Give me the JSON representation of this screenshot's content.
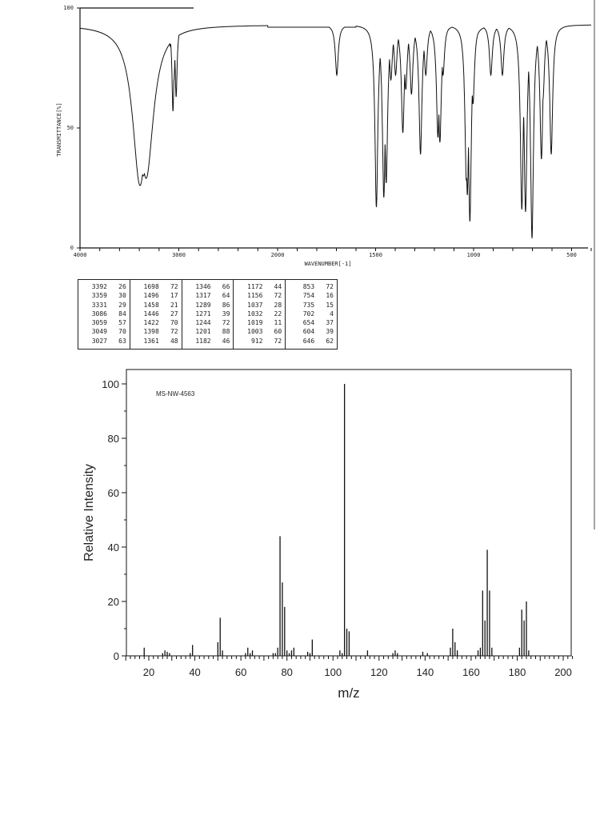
{
  "chart_data": [
    {
      "type": "line",
      "xlabel": "WAVENUMBER[-1]",
      "ylabel": "TRANSMITTANCE[%]",
      "xlim": [
        4000,
        400
      ],
      "ylim": [
        0,
        100
      ],
      "x_scale_note": "x axis scale doubles below 2000",
      "xticks": [
        "4000",
        "3000",
        "2000",
        "1500",
        "1000",
        "500"
      ],
      "yticks": [
        "0",
        "50",
        "100"
      ],
      "grid": false,
      "peaks": [
        [
          3392,
          26
        ],
        [
          3359,
          30
        ],
        [
          3331,
          29
        ],
        [
          3086,
          84
        ],
        [
          3059,
          57
        ],
        [
          3049,
          70
        ],
        [
          3027,
          63
        ],
        [
          1698,
          72
        ],
        [
          1496,
          17
        ],
        [
          1458,
          21
        ],
        [
          1446,
          27
        ],
        [
          1422,
          70
        ],
        [
          1398,
          72
        ],
        [
          1361,
          48
        ],
        [
          1346,
          66
        ],
        [
          1317,
          64
        ],
        [
          1289,
          86
        ],
        [
          1271,
          39
        ],
        [
          1244,
          72
        ],
        [
          1201,
          88
        ],
        [
          1182,
          46
        ],
        [
          1172,
          44
        ],
        [
          1156,
          72
        ],
        [
          1037,
          28
        ],
        [
          1032,
          22
        ],
        [
          1019,
          11
        ],
        [
          1003,
          60
        ],
        [
          912,
          72
        ],
        [
          853,
          72
        ],
        [
          754,
          16
        ],
        [
          735,
          15
        ],
        [
          702,
          4
        ],
        [
          654,
          37
        ],
        [
          604,
          39
        ],
        [
          646,
          62
        ]
      ]
    },
    {
      "type": "bar",
      "title": "MS-NW-4563",
      "xlabel": "m/z",
      "ylabel": "Relative Intensity",
      "xlim": [
        10,
        204
      ],
      "ylim": [
        0,
        100
      ],
      "xticks": [
        "20",
        "40",
        "60",
        "80",
        "100",
        "120",
        "140",
        "160",
        "180",
        "200"
      ],
      "yticks": [
        "0",
        "20",
        "40",
        "60",
        "80",
        "100"
      ],
      "grid": false,
      "peaks": [
        [
          18,
          3
        ],
        [
          26,
          1
        ],
        [
          27,
          2
        ],
        [
          28,
          1.5
        ],
        [
          29,
          1
        ],
        [
          38,
          1
        ],
        [
          39,
          4
        ],
        [
          50,
          5
        ],
        [
          51,
          14
        ],
        [
          52,
          2
        ],
        [
          62,
          1
        ],
        [
          63,
          3
        ],
        [
          64,
          1
        ],
        [
          65,
          2
        ],
        [
          74,
          1
        ],
        [
          75,
          1
        ],
        [
          76,
          3
        ],
        [
          77,
          44
        ],
        [
          78,
          27
        ],
        [
          79,
          18
        ],
        [
          80,
          2
        ],
        [
          81,
          1
        ],
        [
          82,
          2
        ],
        [
          83,
          3
        ],
        [
          89,
          1.5
        ],
        [
          90,
          1
        ],
        [
          91,
          6
        ],
        [
          103,
          2
        ],
        [
          104,
          1
        ],
        [
          105,
          100
        ],
        [
          106,
          10
        ],
        [
          107,
          9
        ],
        [
          115,
          2
        ],
        [
          126,
          1
        ],
        [
          127,
          2
        ],
        [
          128,
          1
        ],
        [
          139,
          1.5
        ],
        [
          141,
          1
        ],
        [
          151,
          3
        ],
        [
          152,
          10
        ],
        [
          153,
          5
        ],
        [
          154,
          2
        ],
        [
          163,
          2
        ],
        [
          164,
          3
        ],
        [
          165,
          24
        ],
        [
          166,
          13
        ],
        [
          167,
          39
        ],
        [
          168,
          24
        ],
        [
          169,
          3
        ],
        [
          181,
          3
        ],
        [
          182,
          17
        ],
        [
          183,
          13
        ],
        [
          184,
          20
        ],
        [
          185,
          2
        ]
      ]
    }
  ],
  "peak_table": {
    "groups": [
      [
        [
          "3392",
          "26"
        ],
        [
          "3359",
          "30"
        ],
        [
          "3331",
          "29"
        ],
        [
          "3086",
          "84"
        ],
        [
          "3059",
          "57"
        ],
        [
          "3049",
          "70"
        ],
        [
          "3027",
          "63"
        ]
      ],
      [
        [
          "1698",
          "72"
        ],
        [
          "1496",
          "17"
        ],
        [
          "1458",
          "21"
        ],
        [
          "1446",
          "27"
        ],
        [
          "1422",
          "70"
        ],
        [
          "1398",
          "72"
        ],
        [
          "1361",
          "48"
        ]
      ],
      [
        [
          "1346",
          "66"
        ],
        [
          "1317",
          "64"
        ],
        [
          "1289",
          "86"
        ],
        [
          "1271",
          "39"
        ],
        [
          "1244",
          "72"
        ],
        [
          "1201",
          "88"
        ],
        [
          "1182",
          "46"
        ]
      ],
      [
        [
          "1172",
          "44"
        ],
        [
          "1156",
          "72"
        ],
        [
          "1037",
          "28"
        ],
        [
          "1032",
          "22"
        ],
        [
          "1019",
          "11"
        ],
        [
          "1003",
          "60"
        ],
        [
          "912",
          "72"
        ]
      ],
      [
        [
          "853",
          "72"
        ],
        [
          "754",
          "16"
        ],
        [
          "735",
          "15"
        ],
        [
          "702",
          "4"
        ],
        [
          "654",
          "37"
        ],
        [
          "604",
          "39"
        ],
        [
          "646",
          "62"
        ]
      ]
    ]
  },
  "colors": {
    "ink": "#111111",
    "paper": "#ffffff"
  }
}
